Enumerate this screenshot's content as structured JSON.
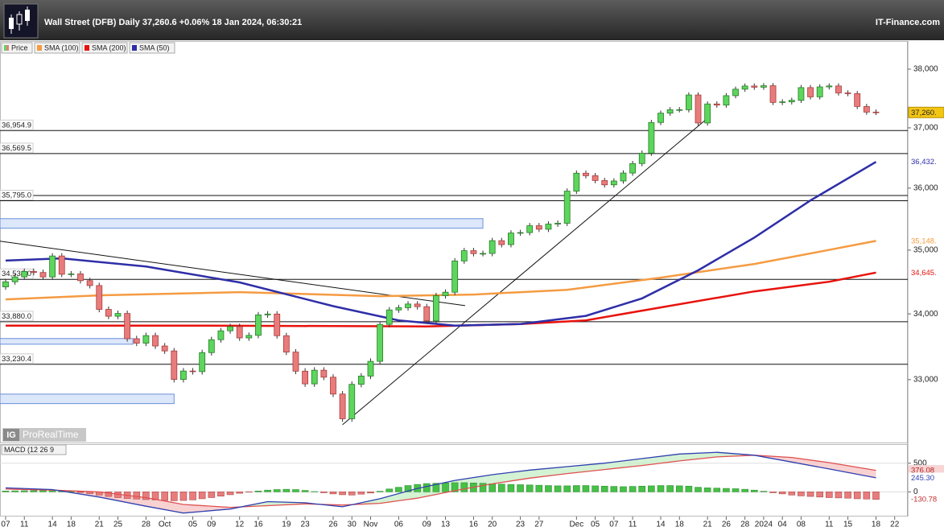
{
  "header": {
    "title": "Wall Street (DFB) Daily 37,260.6 +0.06% 18 Jan 2024, 06:30:21",
    "brand": "IT-Finance.com"
  },
  "watermark": {
    "logo": "IG",
    "text": "ProRealTime"
  },
  "chart_data": [
    {
      "type": "candlestick",
      "log_scale": true,
      "xlim": [
        -0.6,
        96.4
      ],
      "ylim": [
        32070,
        38475
      ],
      "yticks": [
        {
          "value": 33000,
          "label": "33,000"
        },
        {
          "value": 34000,
          "label": "34,000"
        },
        {
          "value": 35000,
          "label": "35,000"
        },
        {
          "value": 36000,
          "label": "36,000"
        },
        {
          "value": 37000,
          "label": "37,000"
        },
        {
          "value": 38000,
          "label": "38,000"
        }
      ],
      "series": [
        {
          "name": "Price",
          "up_color": "#5cd65c",
          "down_color": "#e87c7c",
          "end_label": "37,260.",
          "open": [
            34420,
            34500,
            34577,
            34663,
            34646,
            34576,
            34907,
            34618,
            34624,
            34518,
            34441,
            34070,
            33964,
            34007,
            33619,
            33551,
            33667,
            33508,
            33433,
            33002,
            33129,
            33120,
            33407,
            33604,
            33740,
            33805,
            33631,
            33670,
            33985,
            33998,
            33665,
            33415,
            33127,
            32936,
            33141,
            33036,
            32784,
            32418,
            32929,
            33053,
            33275,
            33839,
            34061,
            34096,
            34153,
            34112,
            33892,
            34283,
            34337,
            34828,
            34991,
            34945,
            34947,
            35151,
            35088,
            35273,
            35280,
            35390,
            35334,
            35417,
            35430,
            35951,
            36245,
            36204,
            36125,
            36054,
            36117,
            36248,
            36404,
            36577,
            37090,
            37248,
            37306,
            37306,
            37557,
            37082,
            37404,
            37385,
            37545,
            37656,
            37710,
            37690,
            37715,
            37430,
            37440,
            37466,
            37683,
            37525,
            37695,
            37711,
            37592,
            37580,
            37361,
            37266
          ],
          "high": [
            34545,
            34622,
            34708,
            34708,
            34691,
            34952,
            34952,
            34669,
            34669,
            34563,
            34486,
            34115,
            34052,
            34052,
            33664,
            33712,
            33712,
            33553,
            33478,
            33174,
            33174,
            33452,
            33649,
            33785,
            33850,
            33850,
            33715,
            34030,
            34043,
            34043,
            33710,
            33460,
            33172,
            33186,
            33186,
            33081,
            32829,
            32974,
            33098,
            33320,
            33884,
            34106,
            34141,
            34198,
            34198,
            34157,
            34328,
            34382,
            34873,
            35036,
            35036,
            34992,
            35196,
            35196,
            35318,
            35325,
            35435,
            35435,
            35462,
            35475,
            35996,
            36290,
            36290,
            36249,
            36170,
            36162,
            36293,
            36449,
            36622,
            37135,
            37293,
            37351,
            37351,
            37602,
            37602,
            37449,
            37449,
            37590,
            37701,
            37755,
            37755,
            37760,
            37760,
            37485,
            37511,
            37728,
            37728,
            37740,
            37756,
            37756,
            37637,
            37625,
            37406,
            37311
          ],
          "low": [
            34375,
            34455,
            34532,
            34601,
            34531,
            34531,
            34573,
            34573,
            34473,
            34396,
            34025,
            33919,
            33919,
            33574,
            33506,
            33506,
            33463,
            33388,
            32957,
            32957,
            33075,
            33075,
            33362,
            33559,
            33695,
            33586,
            33586,
            33625,
            33940,
            33620,
            33370,
            33082,
            32891,
            32891,
            32991,
            32739,
            32373,
            32373,
            32884,
            33008,
            33230,
            33794,
            34016,
            34051,
            34067,
            33847,
            33847,
            34238,
            34292,
            34783,
            34900,
            34900,
            34902,
            35043,
            35043,
            35228,
            35235,
            35289,
            35289,
            35372,
            35385,
            35906,
            36159,
            36080,
            36009,
            36009,
            36072,
            36203,
            36359,
            36532,
            37045,
            37203,
            37261,
            37261,
            37037,
            37037,
            37340,
            37340,
            37500,
            37611,
            37645,
            37645,
            37385,
            37385,
            37395,
            37421,
            37480,
            37480,
            37650,
            37547,
            37535,
            37316,
            37221,
            37215
          ],
          "close": [
            34500,
            34577,
            34663,
            34646,
            34576,
            34907,
            34618,
            34624,
            34518,
            34441,
            34070,
            33964,
            34007,
            33619,
            33551,
            33667,
            33508,
            33433,
            33002,
            33129,
            33120,
            33407,
            33604,
            33740,
            33805,
            33631,
            33670,
            33985,
            33998,
            33665,
            33415,
            33127,
            32936,
            33141,
            33036,
            32784,
            32418,
            32929,
            33053,
            33275,
            33839,
            34061,
            34096,
            34153,
            34112,
            33892,
            34283,
            34337,
            34828,
            34991,
            34945,
            34947,
            35151,
            35088,
            35273,
            35280,
            35390,
            35334,
            35417,
            35430,
            35951,
            36245,
            36204,
            36125,
            36054,
            36117,
            36248,
            36404,
            36577,
            37090,
            37248,
            37306,
            37306,
            37557,
            37082,
            37404,
            37385,
            37545,
            37656,
            37710,
            37690,
            37715,
            37430,
            37440,
            37466,
            37683,
            37525,
            37695,
            37711,
            37592,
            37580,
            37361,
            37266,
            37260
          ]
        },
        {
          "name": "SMA (100)",
          "color": "#f59b42",
          "end_label": "35,148.",
          "x": [
            0,
            10,
            25,
            40,
            50,
            60,
            70,
            80,
            87,
            93
          ],
          "values": [
            34226,
            34288,
            34338,
            34276,
            34300,
            34375,
            34565,
            34780,
            34975,
            35148
          ]
        },
        {
          "name": "SMA (200)",
          "color": "#e8120c",
          "end_label": "34,645.",
          "x": [
            0,
            20,
            45,
            55,
            62,
            70,
            80,
            88,
            93
          ],
          "values": [
            33820,
            33820,
            33808,
            33845,
            33900,
            34100,
            34350,
            34500,
            34645
          ]
        },
        {
          "name": "SMA (50)",
          "color": "#2e2ea8",
          "end_label": "36,432.",
          "x": [
            0,
            6,
            15,
            25,
            35,
            42,
            48,
            55,
            62,
            68,
            74,
            80,
            86,
            93
          ],
          "values": [
            34834,
            34870,
            34740,
            34490,
            34120,
            33900,
            33820,
            33845,
            33970,
            34240,
            34680,
            35200,
            35800,
            36432
          ]
        }
      ],
      "levels": [
        {
          "value": 36954.9,
          "label": "36,954.9"
        },
        {
          "value": 36569.5,
          "label": "36,569.5"
        },
        {
          "value": 35880,
          "label": null
        },
        {
          "value": 35795,
          "label": "35,795.0"
        },
        {
          "value": 34538,
          "label": "34,538.0"
        },
        {
          "value": 33880,
          "label": "33,880.0"
        },
        {
          "value": 33230.4,
          "label": "33,230.4"
        }
      ],
      "zones": [
        {
          "x": [
            -0.6,
            51
          ],
          "values": [
            35504,
            35350
          ]
        },
        {
          "x": [
            -0.6,
            13.6
          ],
          "values": [
            33622,
            33535
          ]
        },
        {
          "x": [
            -0.6,
            18
          ],
          "values": [
            32783,
            32642
          ]
        }
      ],
      "trendlines": [
        {
          "x": [
            -0.6,
            49.1
          ],
          "values": [
            35143,
            34128
          ]
        },
        {
          "x": [
            36,
            75
          ],
          "values": [
            32330,
            37162
          ]
        }
      ]
    },
    {
      "type": "macd",
      "title": "MACD (12 26 9",
      "xlim": [
        -0.6,
        96.4
      ],
      "ylim": [
        -430,
        819
      ],
      "yticks": [
        0,
        500
      ],
      "xticks": [
        {
          "value": 0,
          "label": "07"
        },
        {
          "value": 2,
          "label": "11"
        },
        {
          "value": 5,
          "label": "14"
        },
        {
          "value": 7,
          "label": "18"
        },
        {
          "value": 10,
          "label": "21"
        },
        {
          "value": 12,
          "label": "25"
        },
        {
          "value": 15,
          "label": "28"
        },
        {
          "value": 17,
          "label": "Oct"
        },
        {
          "value": 20,
          "label": "05"
        },
        {
          "value": 22,
          "label": "09"
        },
        {
          "value": 25,
          "label": "12"
        },
        {
          "value": 27,
          "label": "16"
        },
        {
          "value": 30,
          "label": "19"
        },
        {
          "value": 32,
          "label": "23"
        },
        {
          "value": 35,
          "label": "26"
        },
        {
          "value": 37,
          "label": "30"
        },
        {
          "value": 39,
          "label": "Nov"
        },
        {
          "value": 42,
          "label": "06"
        },
        {
          "value": 45,
          "label": "09"
        },
        {
          "value": 47,
          "label": "13"
        },
        {
          "value": 50,
          "label": "16"
        },
        {
          "value": 52,
          "label": "20"
        },
        {
          "value": 55,
          "label": "23"
        },
        {
          "value": 57,
          "label": "27"
        },
        {
          "value": 61,
          "label": "Dec"
        },
        {
          "value": 63,
          "label": "05"
        },
        {
          "value": 65,
          "label": "07"
        },
        {
          "value": 67,
          "label": "11"
        },
        {
          "value": 70,
          "label": "14"
        },
        {
          "value": 72,
          "label": "18"
        },
        {
          "value": 75,
          "label": "21"
        },
        {
          "value": 77,
          "label": "26"
        },
        {
          "value": 79,
          "label": "28"
        },
        {
          "value": 81,
          "label": "2024"
        },
        {
          "value": 83,
          "label": "04"
        },
        {
          "value": 85,
          "label": "08"
        },
        {
          "value": 88,
          "label": "11"
        },
        {
          "value": 90,
          "label": "15"
        },
        {
          "value": 93,
          "label": "18"
        },
        {
          "value": 95,
          "label": "22"
        }
      ],
      "histogram": {
        "up_color": "#46c046",
        "down_color": "#e87c7c",
        "end_label": "-130.78",
        "values": [
          15,
          18,
          20,
          22,
          25,
          28,
          20,
          12,
          -10,
          -30,
          -55,
          -80,
          -100,
          -115,
          -125,
          -135,
          -140,
          -150,
          -155,
          -150,
          -140,
          -120,
          -100,
          -75,
          -50,
          -25,
          -5,
          15,
          30,
          40,
          45,
          40,
          25,
          5,
          -15,
          -35,
          -50,
          -55,
          -40,
          -20,
          10,
          50,
          80,
          110,
          130,
          145,
          150,
          155,
          160,
          160,
          155,
          150,
          140,
          135,
          130,
          125,
          120,
          115,
          110,
          105,
          105,
          110,
          110,
          105,
          100,
          95,
          90,
          95,
          100,
          105,
          110,
          110,
          105,
          100,
          80,
          70,
          65,
          60,
          55,
          45,
          30,
          10,
          -15,
          -35,
          -55,
          -70,
          -80,
          -90,
          -100,
          -105,
          -110,
          -120,
          -125,
          -130.78
        ]
      },
      "macd": {
        "color": "#2e3fb0",
        "end_label": "245.30",
        "x": [
          0,
          5,
          10,
          15,
          19,
          24,
          28,
          32,
          36,
          40,
          44,
          48,
          52,
          56,
          60,
          64,
          68,
          72,
          76,
          80,
          84,
          88,
          93
        ],
        "values": [
          70,
          40,
          -90,
          -250,
          -370,
          -300,
          -170,
          -190,
          -260,
          -120,
          60,
          200,
          300,
          380,
          440,
          500,
          580,
          660,
          690,
          640,
          520,
          400,
          245.3
        ]
      },
      "signal": {
        "color": "#e05050",
        "end_label": "376.08",
        "x": [
          0,
          5,
          10,
          15,
          19,
          24,
          28,
          32,
          36,
          40,
          44,
          48,
          52,
          56,
          60,
          64,
          68,
          72,
          76,
          80,
          84,
          88,
          93
        ],
        "values": [
          50,
          30,
          0,
          -100,
          -220,
          -270,
          -240,
          -210,
          -230,
          -200,
          -110,
          20,
          140,
          240,
          320,
          390,
          460,
          540,
          610,
          640,
          600,
          510,
          376.08
        ]
      }
    }
  ]
}
